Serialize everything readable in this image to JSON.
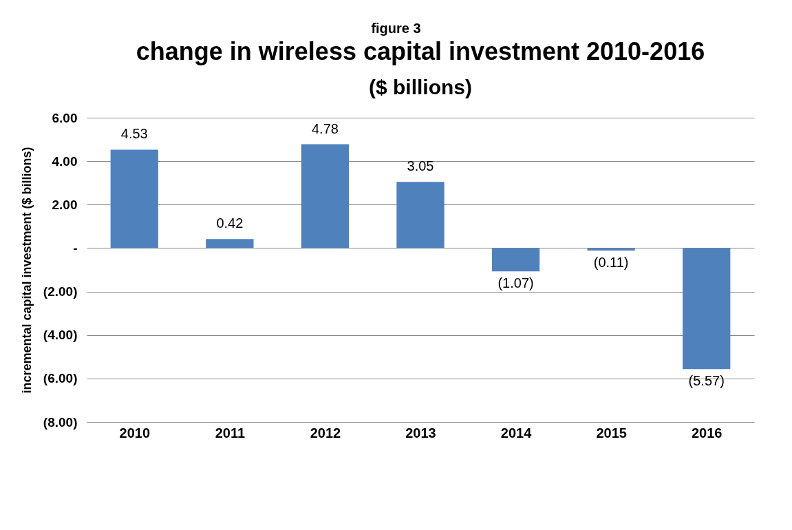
{
  "chart_data": {
    "type": "bar",
    "title": "change in wireless capital investment 2010-2016",
    "subtitle": "($ billions)",
    "annotations": [
      "figure 3"
    ],
    "ylabel": "incremental capital investment ($ billions)",
    "categories": [
      "2010",
      "2011",
      "2012",
      "2013",
      "2014",
      "2015",
      "2016"
    ],
    "values": [
      4.53,
      0.42,
      4.78,
      3.05,
      -1.07,
      -0.11,
      -5.57
    ],
    "value_labels": [
      "4.53",
      "0.42",
      "4.78",
      "3.05",
      "(1.07)",
      "(0.11)",
      "(5.57)"
    ],
    "color": "#4f81bd",
    "ylim": [
      -8,
      6
    ],
    "yticks": [
      {
        "value": 6,
        "label": "6.00"
      },
      {
        "value": 4,
        "label": "4.00"
      },
      {
        "value": 2,
        "label": "2.00"
      },
      {
        "value": 0,
        "label": "-"
      },
      {
        "value": -2,
        "label": "(2.00)"
      },
      {
        "value": -4,
        "label": "(4.00)"
      },
      {
        "value": -6,
        "label": "(6.00)"
      },
      {
        "value": -8,
        "label": "(8.00)"
      }
    ],
    "grid": "y"
  }
}
